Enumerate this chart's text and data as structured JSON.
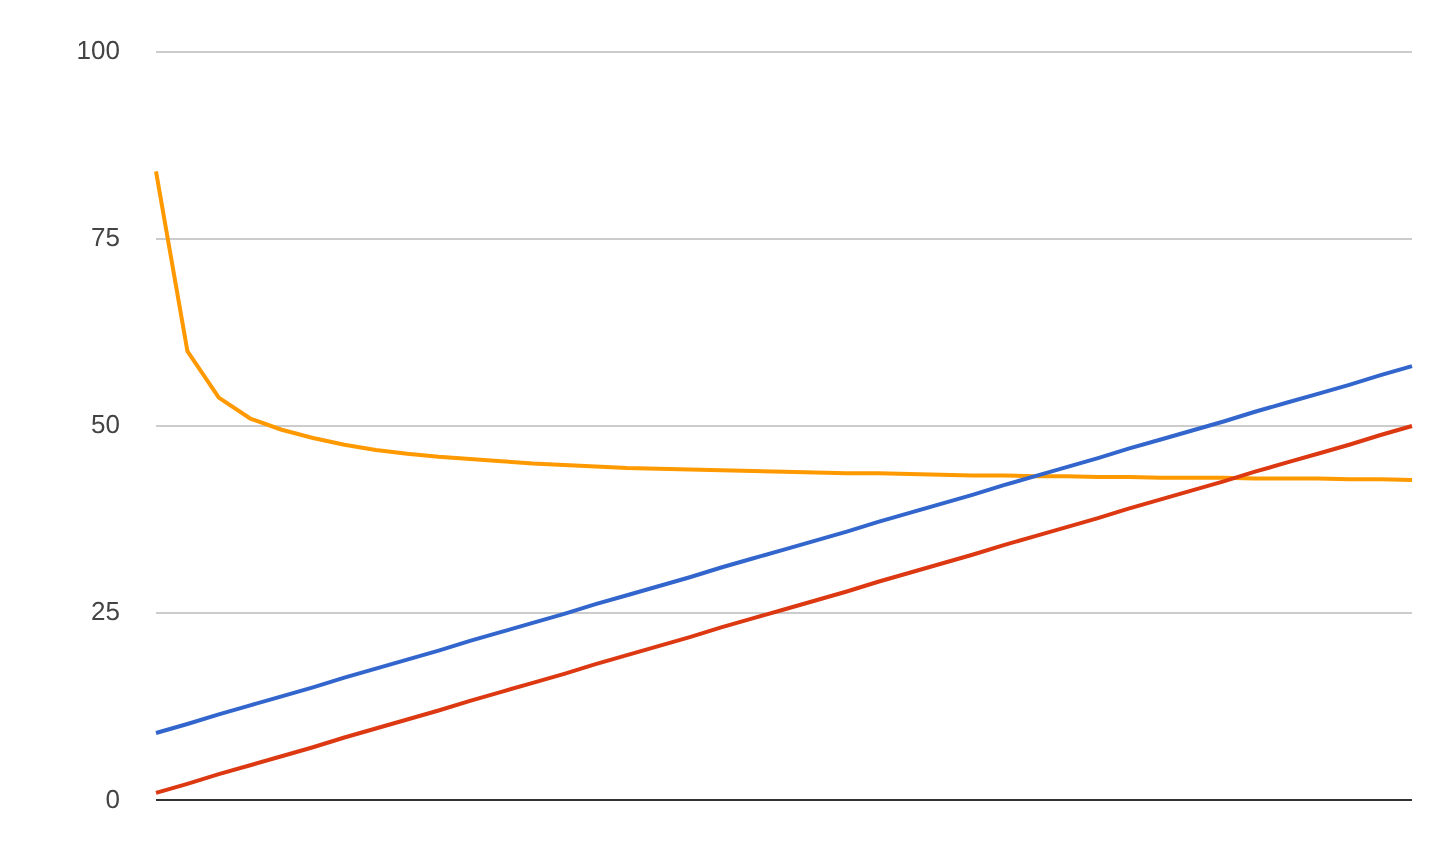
{
  "chart_data": {
    "type": "line",
    "ylim": [
      0,
      100
    ],
    "yticks": [
      0,
      25,
      50,
      75,
      100
    ],
    "grid": "y",
    "legend": false,
    "marker": "none",
    "categories": [
      null,
      null,
      null,
      null,
      null,
      null,
      null,
      null,
      null,
      null,
      null,
      null,
      null,
      null,
      null,
      null,
      null,
      null,
      null,
      null,
      null,
      null,
      null,
      null,
      null,
      null,
      null,
      null,
      null,
      null,
      null,
      null,
      null,
      null,
      null,
      null,
      null,
      null,
      null,
      null,
      null
    ],
    "series": [
      {
        "color": "#3366cc",
        "values": [
          9,
          10.2,
          11.5,
          12.7,
          13.9,
          15.1,
          16.4,
          17.6,
          18.8,
          20.0,
          21.3,
          22.5,
          23.7,
          24.9,
          26.2,
          27.4,
          28.6,
          29.8,
          31.1,
          32.3,
          33.5,
          34.7,
          35.9,
          37.2,
          38.4,
          39.6,
          40.8,
          42.1,
          43.3,
          44.5,
          45.7,
          47.0,
          48.2,
          49.4,
          50.6,
          51.9,
          53.1,
          54.3,
          55.5,
          56.8,
          58
        ]
      },
      {
        "color": "#dc3912",
        "values": [
          1,
          2.2,
          3.5,
          4.7,
          5.9,
          7.1,
          8.4,
          9.6,
          10.8,
          12.0,
          13.3,
          14.5,
          15.7,
          16.9,
          18.2,
          19.4,
          20.6,
          21.8,
          23.1,
          24.3,
          25.5,
          26.7,
          27.9,
          29.2,
          30.4,
          31.6,
          32.8,
          34.1,
          35.3,
          36.5,
          37.7,
          39.0,
          40.2,
          41.4,
          42.6,
          43.9,
          45.1,
          46.3,
          47.5,
          48.8,
          50
        ]
      },
      {
        "color": "#ff9900",
        "values": [
          84,
          60,
          53.8,
          51,
          49.5,
          48.4,
          47.5,
          46.8,
          46.3,
          45.9,
          45.6,
          45.3,
          45,
          44.8,
          44.6,
          44.4,
          44.3,
          44.2,
          44.1,
          44,
          43.9,
          43.8,
          43.7,
          43.7,
          43.6,
          43.5,
          43.4,
          43.4,
          43.3,
          43.3,
          43.2,
          43.2,
          43.1,
          43.1,
          43.1,
          43,
          43,
          43,
          42.9,
          42.9,
          42.8
        ]
      }
    ]
  }
}
